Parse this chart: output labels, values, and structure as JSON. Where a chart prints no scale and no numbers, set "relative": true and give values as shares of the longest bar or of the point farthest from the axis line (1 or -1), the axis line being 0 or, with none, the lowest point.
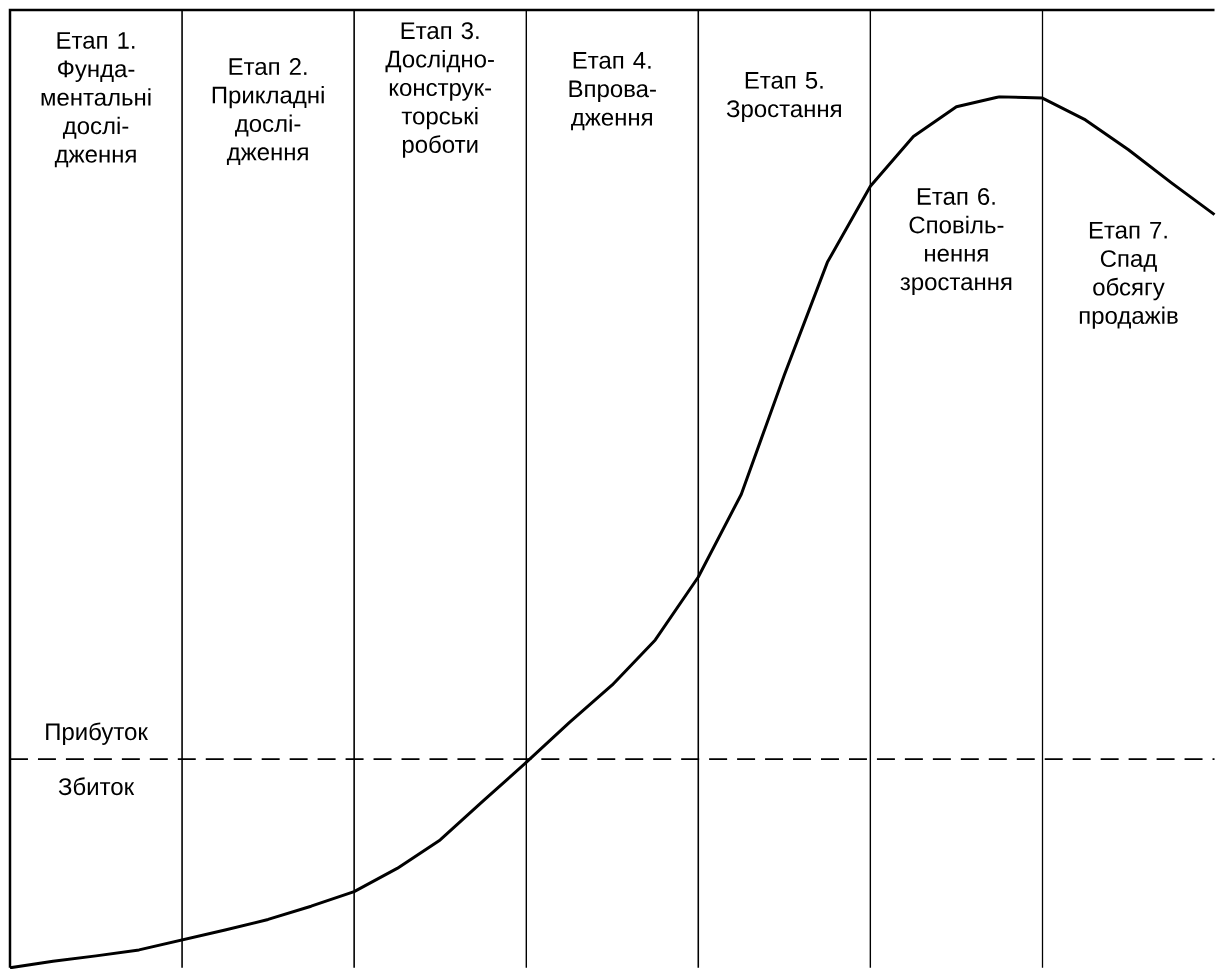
{
  "chart_data": {
    "type": "line",
    "relative": true,
    "grid": "x",
    "categories": [
      null,
      null,
      null,
      null,
      null,
      null,
      null,
      null,
      null,
      null,
      null,
      null,
      null,
      null,
      null,
      null,
      null,
      null,
      null,
      null,
      null,
      null,
      null,
      null,
      null,
      null,
      null,
      null,
      null
    ],
    "series": [
      {
        "color": "#000000",
        "values": [
          -0.315,
          -0.305,
          -0.297,
          -0.288,
          -0.273,
          -0.258,
          -0.242,
          -0.222,
          -0.2,
          -0.165,
          -0.122,
          -0.063,
          -0.005,
          0.055,
          0.112,
          0.18,
          0.275,
          0.4,
          0.58,
          0.75,
          0.865,
          0.94,
          0.985,
          1.0,
          0.998,
          0.965,
          0.92,
          0.87,
          0.822
        ]
      }
    ],
    "ref_lines": [
      {
        "axis": "y",
        "value": 0,
        "line_style": "dashed"
      }
    ],
    "annotations": [
      "Етап 1. Фунда-ментальні дослі-дження",
      "Етап 2. Прикладні дослі-дження",
      "Етап 3. Дослідно-конструк-торські роботи",
      "Етап 4. Впрова-дження",
      "Етап 5. Зростання",
      "Етап 6. Сповіль-нення зростання",
      "Етап 7. Спад обсягу продажів",
      "Прибуток",
      "Збиток"
    ]
  }
}
